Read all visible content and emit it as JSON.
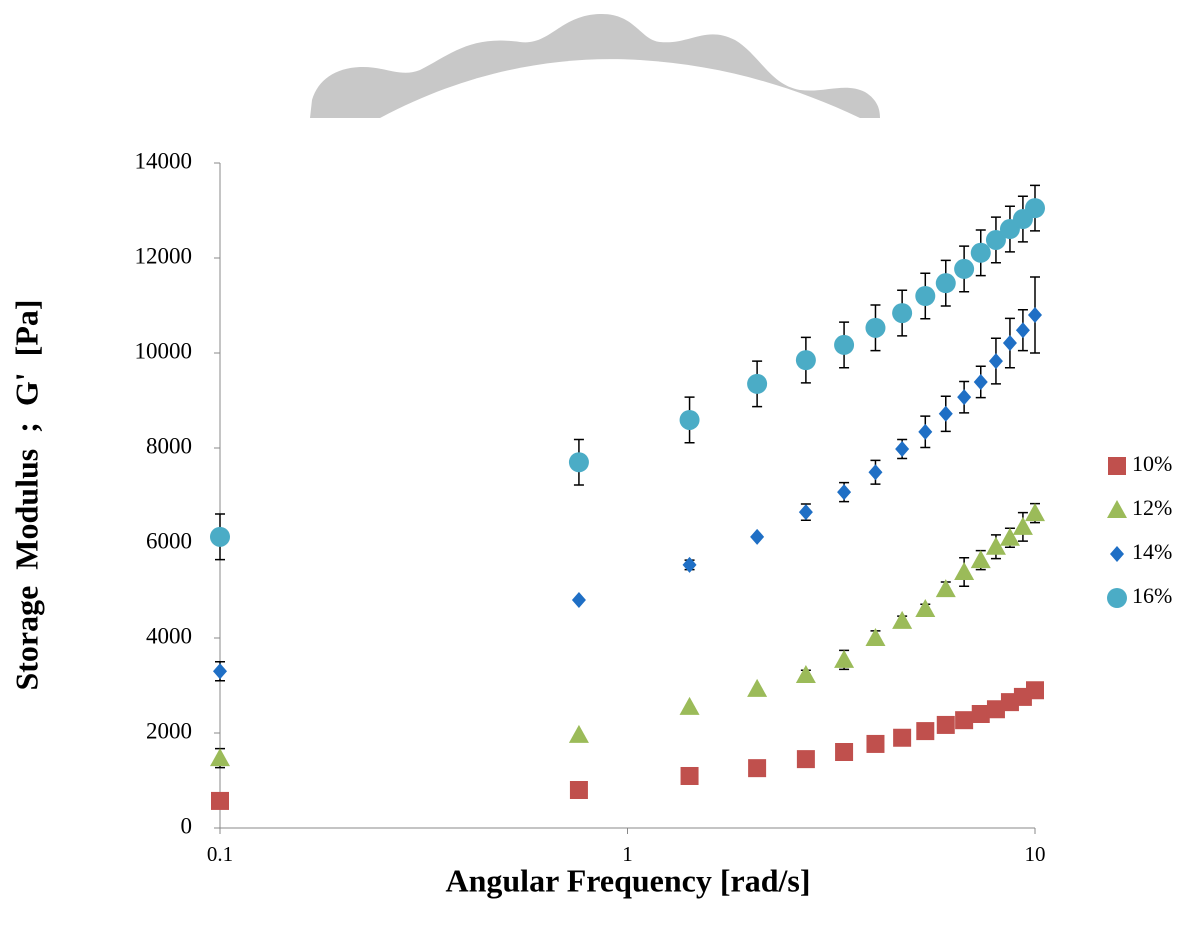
{
  "chart_data": {
    "type": "scatter",
    "x_label": "Angular Frequency [rad/s]",
    "y_label": "Storage  Modulus  ;  G'  [Pa]",
    "x": [
      0.1,
      0.76,
      1.42,
      2.08,
      2.74,
      3.4,
      4.06,
      4.72,
      5.38,
      6.04,
      6.7,
      7.36,
      8.02,
      8.68,
      9.34,
      10
    ],
    "x_scale": "log",
    "xlim": [
      0.1,
      10
    ],
    "xticks": [
      0.1,
      1,
      10
    ],
    "ylim": [
      0,
      14000
    ],
    "yticks": [
      0,
      2000,
      4000,
      6000,
      8000,
      10000,
      12000,
      14000
    ],
    "legend": "right",
    "series": [
      {
        "name": "10%",
        "color": "#c0504d",
        "marker": "square",
        "values": [
          570,
          800,
          1095,
          1260,
          1450,
          1600,
          1770,
          1900,
          2040,
          2170,
          2270,
          2400,
          2500,
          2650,
          2760,
          2900
        ],
        "errors": [
          0,
          0,
          0,
          0,
          0,
          0,
          0,
          0,
          0,
          0,
          0,
          0,
          0,
          0,
          0,
          0
        ]
      },
      {
        "name": "12%",
        "color": "#9bbb59",
        "marker": "triangle",
        "values": [
          1470,
          1960,
          2550,
          2930,
          3220,
          3540,
          4000,
          4360,
          4610,
          5030,
          5390,
          5640,
          5920,
          6110,
          6340,
          6630
        ],
        "errors": [
          200,
          0,
          0,
          0,
          100,
          200,
          150,
          100,
          100,
          150,
          300,
          200,
          250,
          200,
          300,
          200
        ]
      },
      {
        "name": "14%",
        "color": "#1f6fc5",
        "marker": "diamond",
        "values": [
          3300,
          4800,
          5540,
          6130,
          6650,
          7070,
          7490,
          7980,
          8340,
          8720,
          9070,
          9390,
          9830,
          10210,
          10480,
          10800
        ],
        "errors": [
          200,
          0,
          100,
          0,
          170,
          200,
          250,
          200,
          330,
          370,
          330,
          330,
          480,
          520,
          430,
          800
        ]
      },
      {
        "name": "16%",
        "color": "#4bacc6",
        "marker": "circle",
        "values": [
          6130,
          7700,
          8590,
          9350,
          9850,
          10170,
          10530,
          10840,
          11200,
          11470,
          11770,
          12110,
          12380,
          12610,
          12820,
          13050
        ],
        "errors": [
          480,
          480,
          480,
          480,
          480,
          480,
          480,
          480,
          480,
          480,
          480,
          480,
          480,
          480,
          480,
          480
        ]
      }
    ]
  }
}
